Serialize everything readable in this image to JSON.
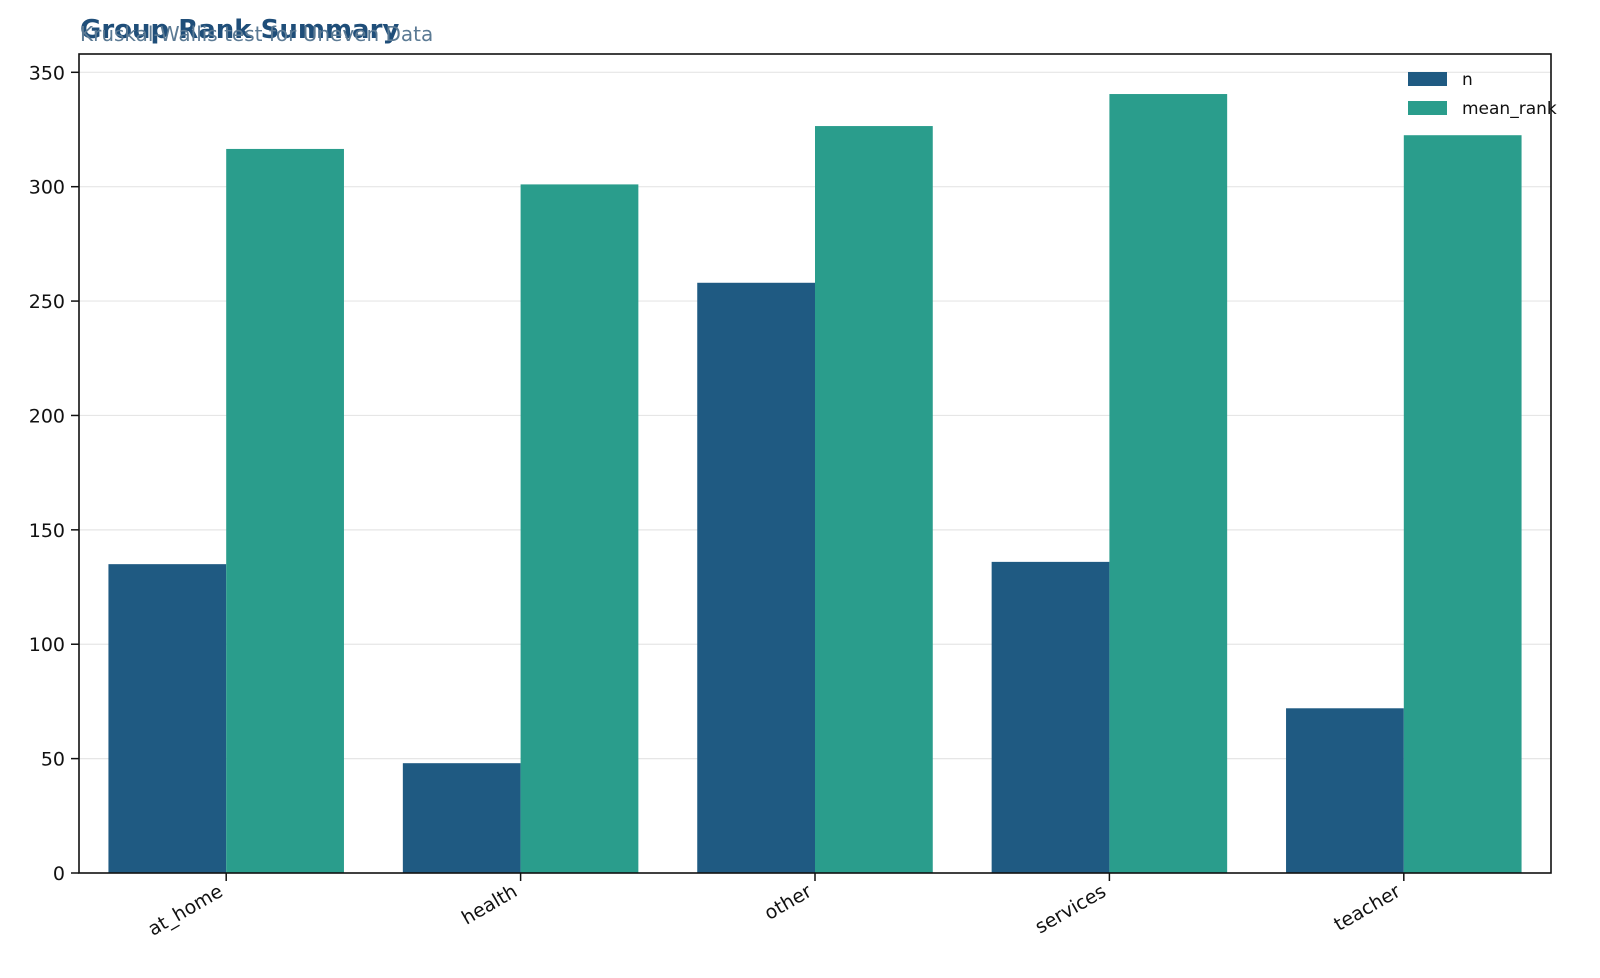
{
  "chart_data": {
    "type": "bar",
    "title": "Group Rank Summary",
    "subtitle": "Kruskal-Wallis test for Uneven Data",
    "xlabel": "",
    "ylabel": "",
    "categories": [
      "at_home",
      "health",
      "other",
      "services",
      "teacher"
    ],
    "series": [
      {
        "name": "n",
        "color": "#1f5a82",
        "values": [
          135,
          48,
          258,
          136,
          72
        ]
      },
      {
        "name": "mean_rank",
        "color": "#2a9d8c",
        "values": [
          316.5,
          301,
          326.5,
          340.5,
          322.5
        ]
      }
    ],
    "ylim": [
      0,
      358
    ],
    "yticks": [
      0,
      50,
      100,
      150,
      200,
      250,
      300,
      350
    ],
    "grid": "y",
    "legend_position": "top-right"
  }
}
